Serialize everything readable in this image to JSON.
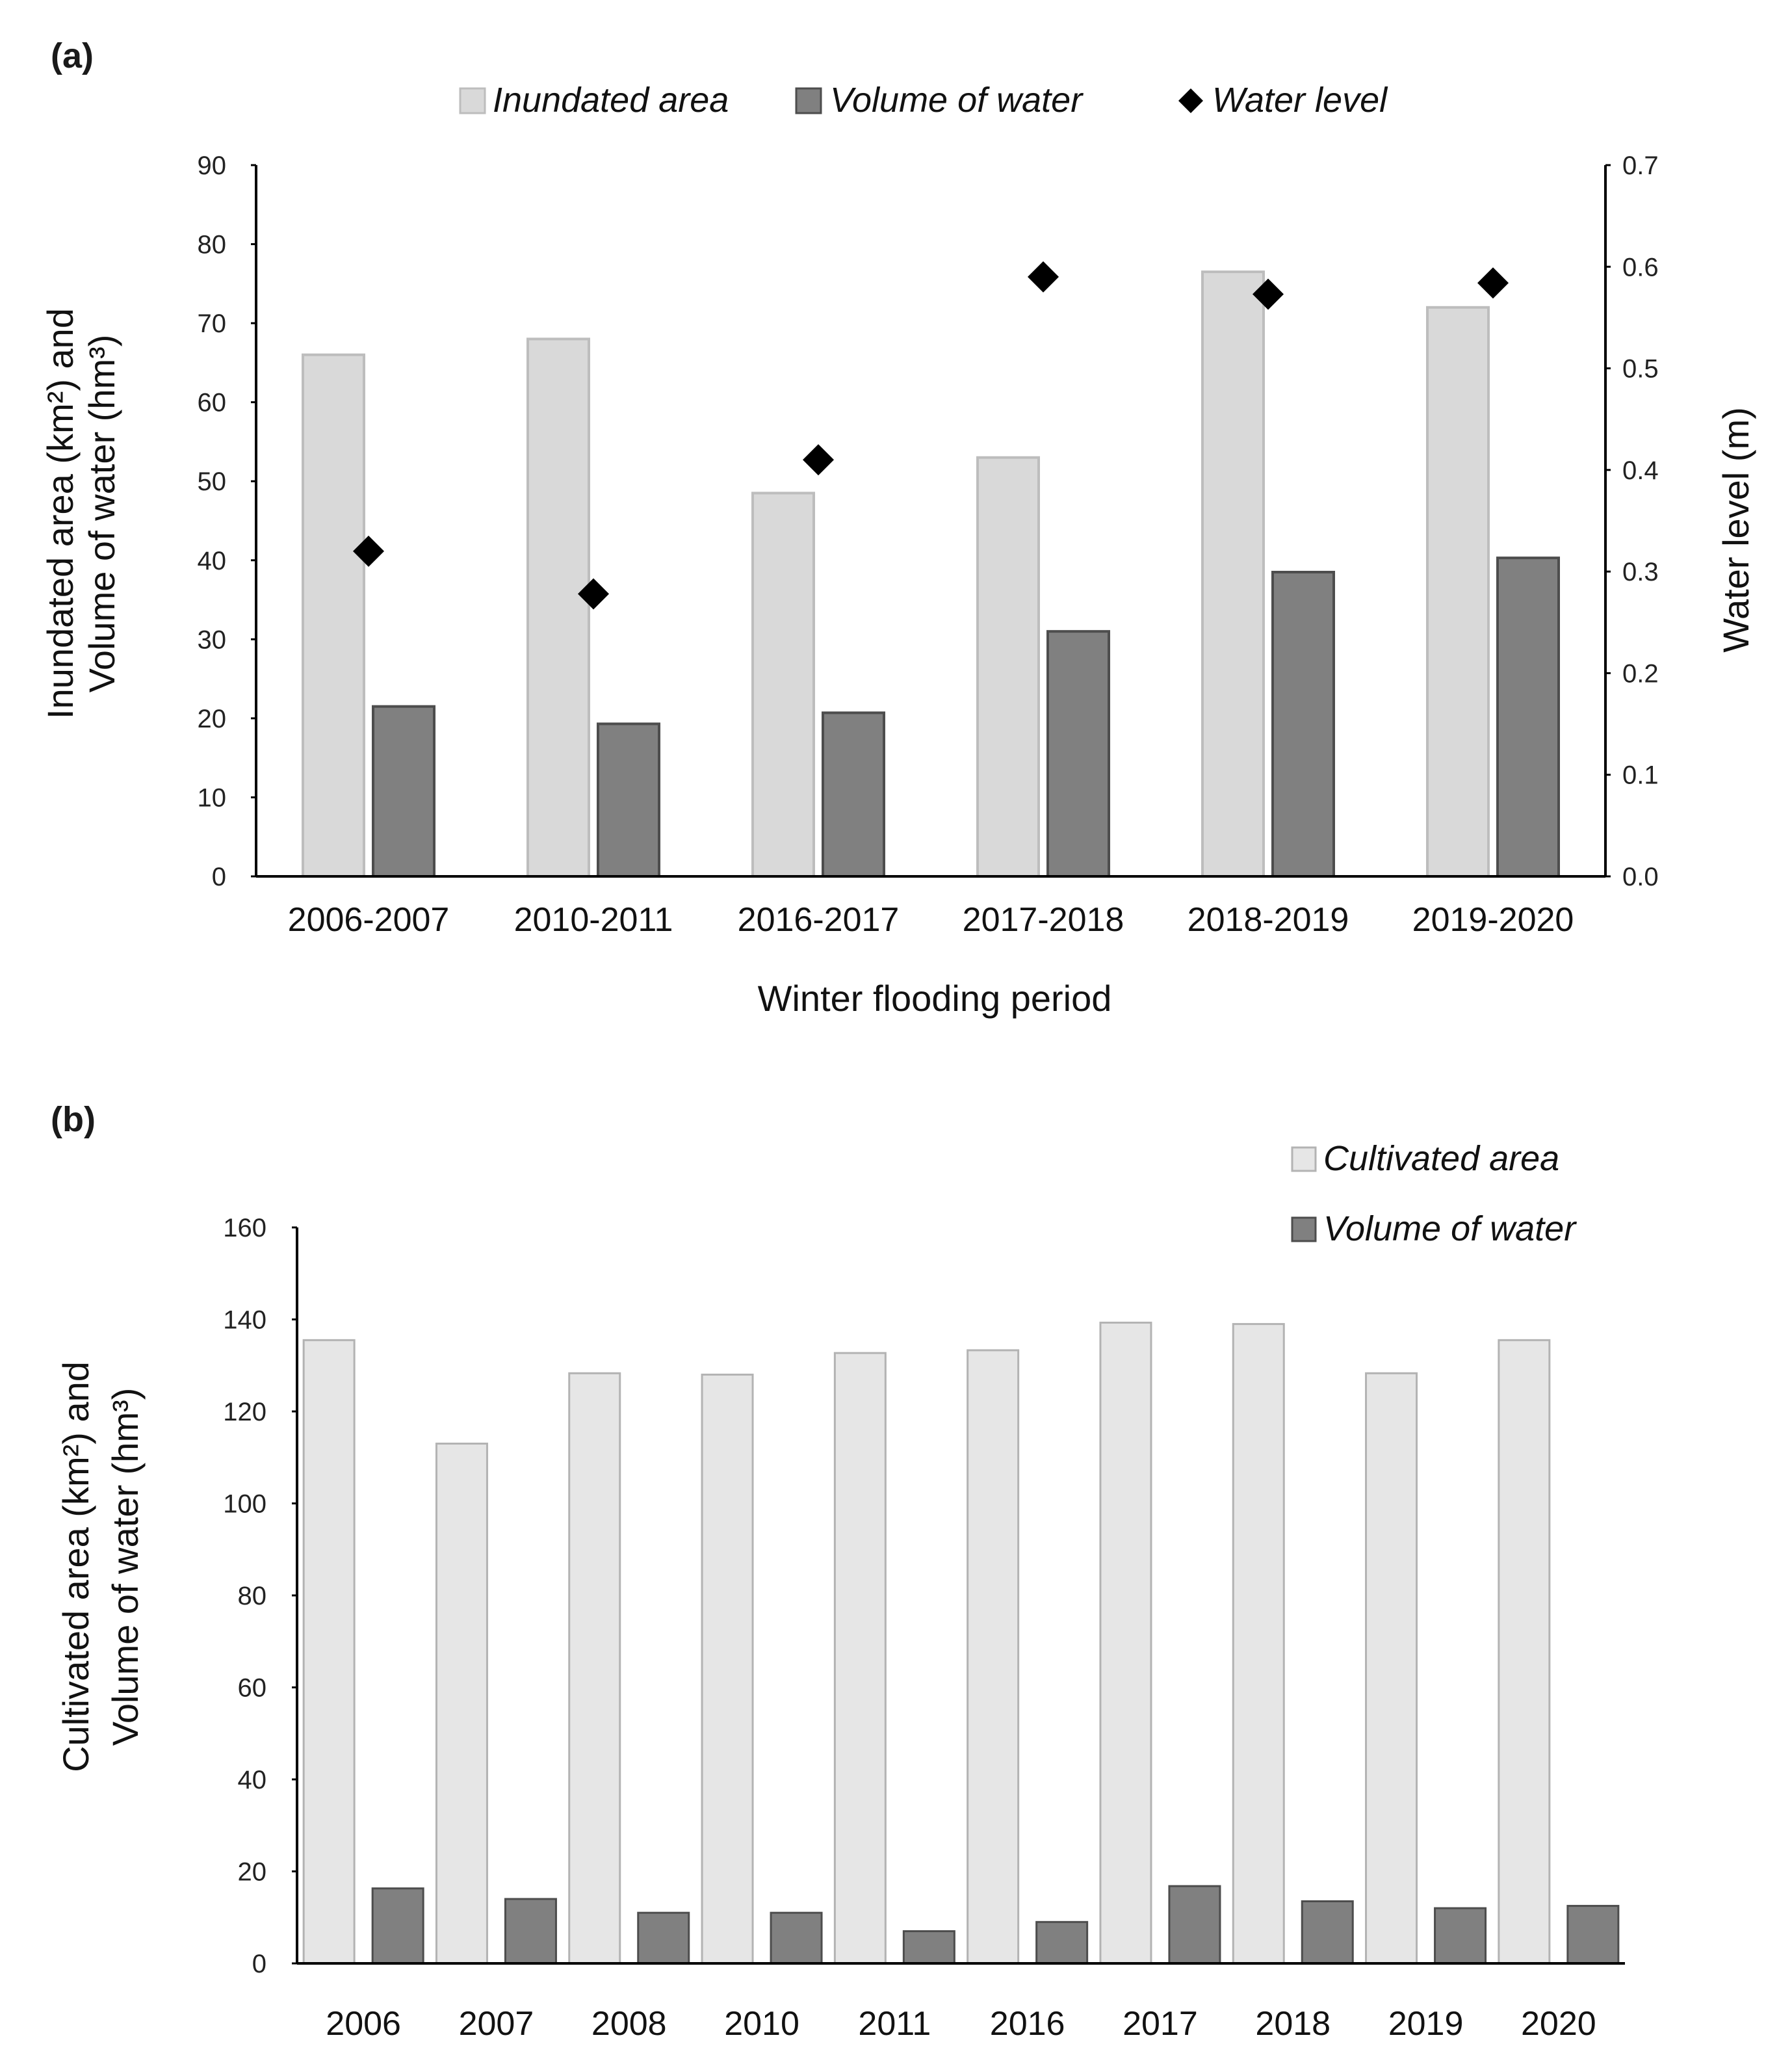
{
  "chart_data": [
    {
      "panel": "(a)",
      "type": "bar",
      "categories": [
        "2006-2007",
        "2010-2011",
        "2016-2017",
        "2017-2018",
        "2018-2019",
        "2019-2020"
      ],
      "series": [
        {
          "name": "Inundated area",
          "kind": "bar",
          "axis": "left",
          "color": "#d9d9d9",
          "stroke": "#bdbdbd",
          "values": [
            66,
            68,
            48.5,
            53,
            76.5,
            72
          ]
        },
        {
          "name": "Volume of water",
          "kind": "bar",
          "axis": "left",
          "color": "#808080",
          "stroke": "#4d4d4d",
          "values": [
            21.5,
            19.3,
            20.7,
            31,
            38.5,
            40.3
          ]
        },
        {
          "name": "Water level",
          "kind": "scatter",
          "axis": "right",
          "color": "#000000",
          "values": [
            0.32,
            0.278,
            0.41,
            0.59,
            0.573,
            0.584
          ]
        }
      ],
      "legend": [
        "Inundated area",
        "Volume of water",
        "Water level"
      ],
      "xlabel": "Winter flooding period",
      "ylabel_lines": [
        "Inundated area (km²)  and",
        "Volume of water (hm³)"
      ],
      "y2label": "Water level (m)",
      "ylim": [
        0,
        90
      ],
      "yticks": [
        "0",
        "10",
        "20",
        "30",
        "40",
        "50",
        "60",
        "70",
        "80",
        "90"
      ],
      "y2lim": [
        0,
        0.7
      ],
      "y2ticks": [
        "0.0",
        "0.1",
        "0.2",
        "0.3",
        "0.4",
        "0.5",
        "0.6",
        "0.7"
      ],
      "grid": false,
      "legend_position": "top"
    },
    {
      "panel": "(b)",
      "type": "bar",
      "categories": [
        "2006",
        "2007",
        "2008",
        "2010",
        "2011",
        "2016",
        "2017",
        "2018",
        "2019",
        "2020"
      ],
      "series": [
        {
          "name": "Cultivated area",
          "color": "#e6e6e6",
          "stroke": "#b3b3b3",
          "values": [
            135.5,
            113,
            128.3,
            128,
            132.7,
            133.3,
            139.3,
            139,
            128.3,
            135.5
          ]
        },
        {
          "name": "Volume of water",
          "color": "#808080",
          "stroke": "#4d4d4d",
          "values": [
            16.3,
            14,
            11,
            11,
            7,
            9,
            16.8,
            13.5,
            12,
            12.5
          ]
        }
      ],
      "legend": [
        "Cultivated area",
        "Volume of water"
      ],
      "xlabel": "",
      "ylabel_lines": [
        "Cultivated area (km²)  and",
        "Volume of water (hm³)"
      ],
      "ylim": [
        0,
        160
      ],
      "yticks": [
        "0",
        "20",
        "40",
        "60",
        "80",
        "100",
        "120",
        "140",
        "160"
      ],
      "grid": false,
      "legend_position": "top-right"
    }
  ]
}
